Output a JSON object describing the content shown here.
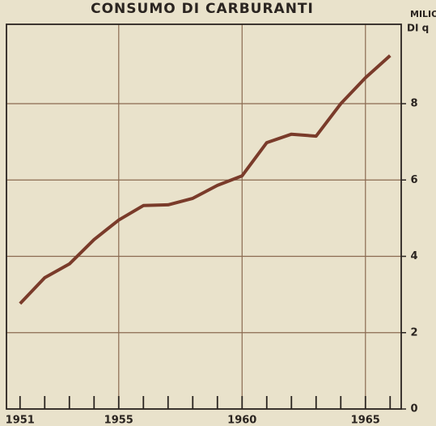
{
  "chart_data": {
    "type": "line",
    "title": "CONSUMO DI CARBURANTI",
    "y_label": [
      "MILIONI",
      "DI q"
    ],
    "x": [
      1951,
      1952,
      1953,
      1954,
      1955,
      1956,
      1957,
      1958,
      1959,
      1960,
      1961,
      1962,
      1963,
      1964,
      1965,
      1966
    ],
    "series": [
      {
        "color": "#7a3b2a",
        "values": [
          2.76,
          3.44,
          3.8,
          4.44,
          4.95,
          5.33,
          5.35,
          5.52,
          5.86,
          6.11,
          6.98,
          7.2,
          7.15,
          8.0,
          8.68,
          9.26
        ]
      }
    ],
    "xlim": [
      1950.45,
      1966.45
    ],
    "xticks": [
      1951,
      1955,
      1960,
      1965
    ],
    "xminorticks": [
      1951,
      1952,
      1953,
      1954,
      1955,
      1956,
      1957,
      1958,
      1959,
      1960,
      1961,
      1962,
      1963,
      1964,
      1965,
      1966
    ],
    "ylim": [
      0,
      10.08
    ],
    "yticks": [
      0,
      2,
      4,
      6,
      8
    ],
    "grid": true,
    "grid_color": "#8a6a50"
  }
}
